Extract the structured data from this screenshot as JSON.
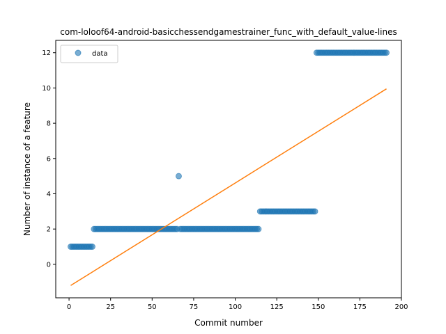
{
  "chart_data": {
    "type": "scatter",
    "title": "com-loloof64-android-basicchessendgamestrainer_func_with_default_value-lines",
    "xlabel": "Commit number",
    "ylabel": "Number of instance of a feature",
    "xlim": [
      -8,
      200
    ],
    "ylim": [
      -1.9,
      12.7
    ],
    "xticks": [
      0,
      25,
      50,
      75,
      100,
      125,
      150,
      175,
      200
    ],
    "yticks": [
      0,
      2,
      4,
      6,
      8,
      10,
      12
    ],
    "legend": {
      "label": "data",
      "placement": "top-left"
    },
    "colors": {
      "points": "#1f77b4",
      "fit": "#ff7f0e",
      "axes": "#000000"
    },
    "series": [
      {
        "name": "data",
        "kind": "scatter",
        "segments": [
          {
            "x_start": 1,
            "x_end": 14,
            "y": 1
          },
          {
            "x_start": 15,
            "x_end": 65,
            "y": 2
          },
          {
            "x_start": 66,
            "x_end": 66,
            "y": 5
          },
          {
            "x_start": 67,
            "x_end": 114,
            "y": 2
          },
          {
            "x_start": 115,
            "x_end": 148,
            "y": 3
          },
          {
            "x_start": 149,
            "x_end": 191,
            "y": 12
          }
        ]
      },
      {
        "name": "fit",
        "kind": "line",
        "x": [
          1,
          191
        ],
        "y": [
          -1.2,
          9.95
        ]
      }
    ]
  }
}
